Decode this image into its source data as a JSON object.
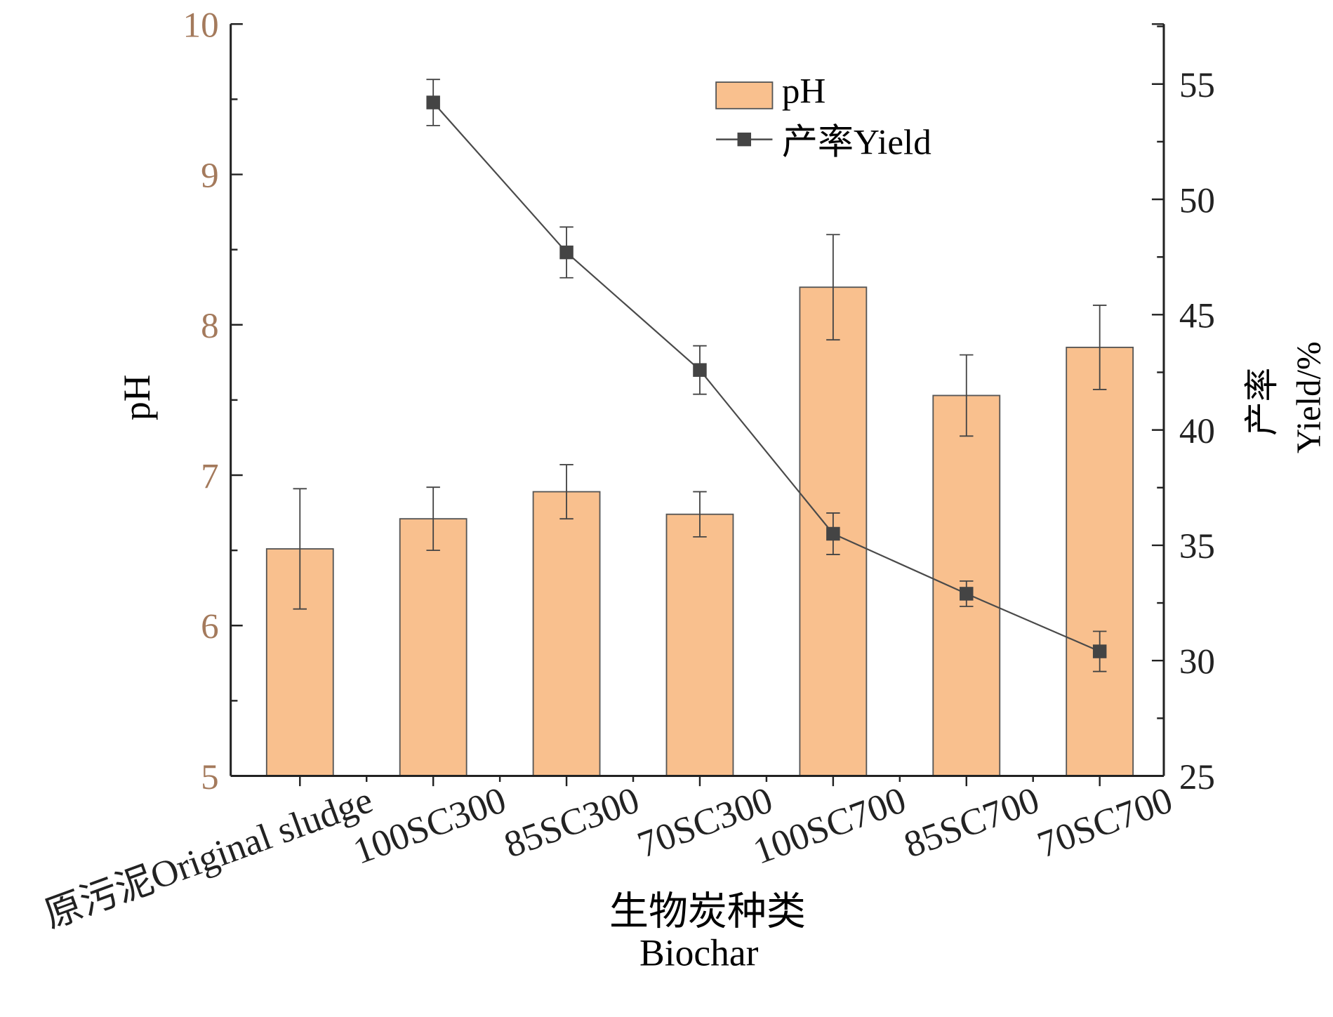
{
  "chart_data": {
    "type": "bar+line",
    "categories": [
      "原污泥Original sludge",
      "100SC300",
      "85SC300",
      "70SC300",
      "100SC700",
      "85SC700",
      "70SC700"
    ],
    "xlabel": [
      "生物炭种类",
      "Biochar"
    ],
    "ylabel_left": "pH",
    "ylabel_right": [
      "产率",
      "Yield/%"
    ],
    "ylim_left": [
      5,
      10
    ],
    "ylim_right": [
      25,
      57.6
    ],
    "left_ticks": [
      5,
      6,
      7,
      8,
      9,
      10
    ],
    "right_ticks": [
      25,
      30,
      35,
      40,
      45,
      50,
      55
    ],
    "legend_position": "top-center",
    "series": [
      {
        "name": "pH",
        "type": "bar",
        "axis": "left",
        "color": "#f9c08e",
        "values": [
          6.51,
          6.71,
          6.89,
          6.74,
          8.25,
          7.53,
          7.85
        ],
        "errors": [
          0.4,
          0.21,
          0.18,
          0.15,
          0.35,
          0.27,
          0.28
        ]
      },
      {
        "name": "产率Yield",
        "type": "line",
        "axis": "right",
        "color": "#4a4a4a",
        "values": [
          null,
          54.2,
          47.7,
          42.6,
          35.5,
          32.9,
          30.4
        ],
        "errors": [
          null,
          1.0,
          1.1,
          1.05,
          0.9,
          0.55,
          0.87
        ]
      }
    ],
    "colors": {
      "left_tick_text": "#a47a5c",
      "axis": "#222222"
    }
  }
}
